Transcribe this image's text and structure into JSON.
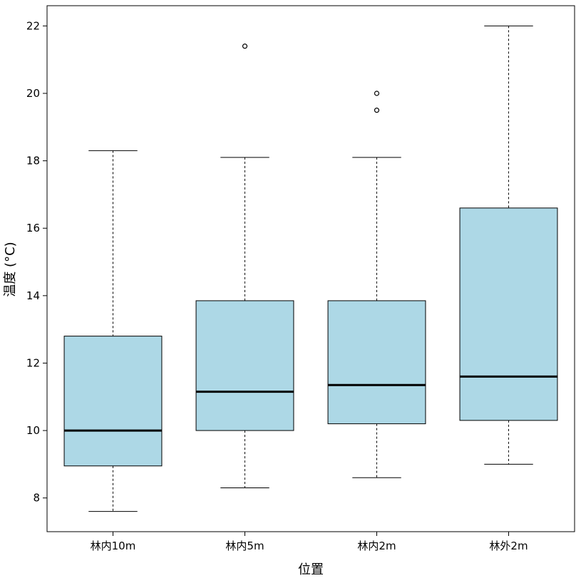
{
  "chart_data": {
    "type": "boxplot",
    "xlabel": "位置",
    "ylabel": "温度 (°C)",
    "ylim": [
      7.0,
      22.6
    ],
    "yticks": [
      8,
      10,
      12,
      14,
      16,
      18,
      20,
      22
    ],
    "grid": false,
    "box_color": "#add8e6",
    "categories": [
      "林内10m",
      "林内5m",
      "林内2m",
      "林外2m"
    ],
    "boxes": [
      {
        "category": "林内10m",
        "whisker_low": 7.6,
        "q1": 8.95,
        "median": 10.0,
        "q3": 12.8,
        "whisker_high": 18.3,
        "outliers": []
      },
      {
        "category": "林内5m",
        "whisker_low": 8.3,
        "q1": 10.0,
        "median": 11.15,
        "q3": 13.85,
        "whisker_high": 18.1,
        "outliers": [
          21.4
        ]
      },
      {
        "category": "林内2m",
        "whisker_low": 8.6,
        "q1": 10.2,
        "median": 11.35,
        "q3": 13.85,
        "whisker_high": 18.1,
        "outliers": [
          19.5,
          20.0
        ]
      },
      {
        "category": "林外2m",
        "whisker_low": 9.0,
        "q1": 10.3,
        "median": 11.6,
        "q3": 16.6,
        "whisker_high": 22.0,
        "outliers": []
      }
    ]
  }
}
